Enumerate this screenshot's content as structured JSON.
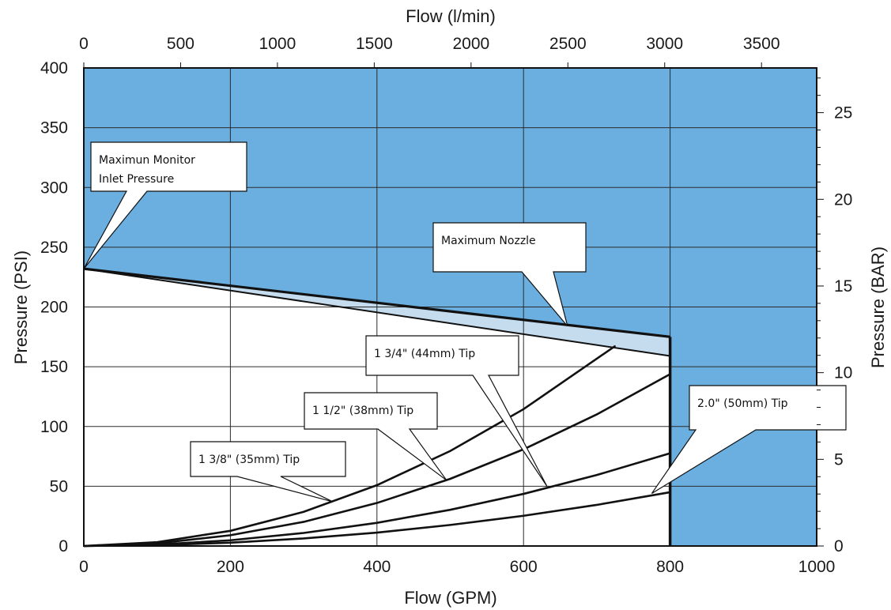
{
  "chart_data": {
    "type": "line",
    "title": "",
    "xlabel": "Flow (GPM)",
    "ylabel": "Pressure (PSI)",
    "x2label": "Flow (l/min)",
    "y2label": "Pressure (BAR)",
    "xlim": [
      0,
      1000
    ],
    "ylim": [
      0,
      400
    ],
    "x2lim": [
      0,
      3785
    ],
    "y2lim": [
      0,
      27.58
    ],
    "x_ticks": [
      "0",
      "200",
      "400",
      "600",
      "800",
      "1000"
    ],
    "y_ticks": [
      "0",
      "50",
      "100",
      "150",
      "200",
      "250",
      "300",
      "350",
      "400"
    ],
    "x2_ticks": [
      "0",
      "500",
      "1000",
      "1500",
      "2000",
      "2500",
      "3000",
      "3500"
    ],
    "y2_ticks": [
      "0",
      "5",
      "10",
      "15",
      "20",
      "25"
    ],
    "grid": true,
    "region_color": "#6aafe0",
    "band_color": "#c5dcee",
    "max_flow_gpm": 800,
    "max_inlet_line": {
      "x": [
        0,
        800
      ],
      "y": [
        232,
        175
      ]
    },
    "max_nozzle_line": {
      "x": [
        0,
        800
      ],
      "y": [
        232,
        159
      ]
    },
    "series": [
      {
        "x": [
          0,
          100,
          200,
          300,
          400,
          500,
          600,
          725
        ],
        "y": [
          0,
          3.2,
          12.7,
          28.6,
          50.9,
          79.5,
          114.5,
          167.3
        ]
      },
      {
        "x": [
          0,
          100,
          200,
          300,
          400,
          500,
          600,
          700,
          800
        ],
        "y": [
          0,
          2.2,
          9,
          20.2,
          36,
          56.2,
          80.9,
          110.1,
          143.8
        ]
      },
      {
        "x": [
          0,
          100,
          200,
          300,
          400,
          500,
          600,
          700,
          800
        ],
        "y": [
          0,
          1.2,
          4.8,
          10.9,
          19.4,
          30.3,
          43.6,
          59.4,
          77.6
        ]
      },
      {
        "x": [
          0,
          100,
          200,
          300,
          400,
          500,
          600,
          700,
          800
        ],
        "y": [
          0,
          0.7,
          2.8,
          6.3,
          11.2,
          17.6,
          25.3,
          34.4,
          45
        ]
      }
    ],
    "annotations": [
      {
        "text": [
          "Maximun Monitor",
          "Inlet Pressure"
        ],
        "target": [
          0,
          232
        ]
      },
      {
        "text": [
          "Maximum Nozzle"
        ],
        "target": [
          660,
          184
        ]
      },
      {
        "text": [
          "1 3/4\" (44mm) Tip"
        ],
        "target": [
          632,
          50
        ]
      },
      {
        "text": [
          "1 1/2\" (38mm) Tip"
        ],
        "target": [
          495,
          55
        ]
      },
      {
        "text": [
          "1 3/8\" (35mm) Tip"
        ],
        "target": [
          340,
          37
        ]
      },
      {
        "text": [
          "2.0\" (50mm) Tip"
        ],
        "target": [
          775,
          44
        ]
      }
    ]
  }
}
